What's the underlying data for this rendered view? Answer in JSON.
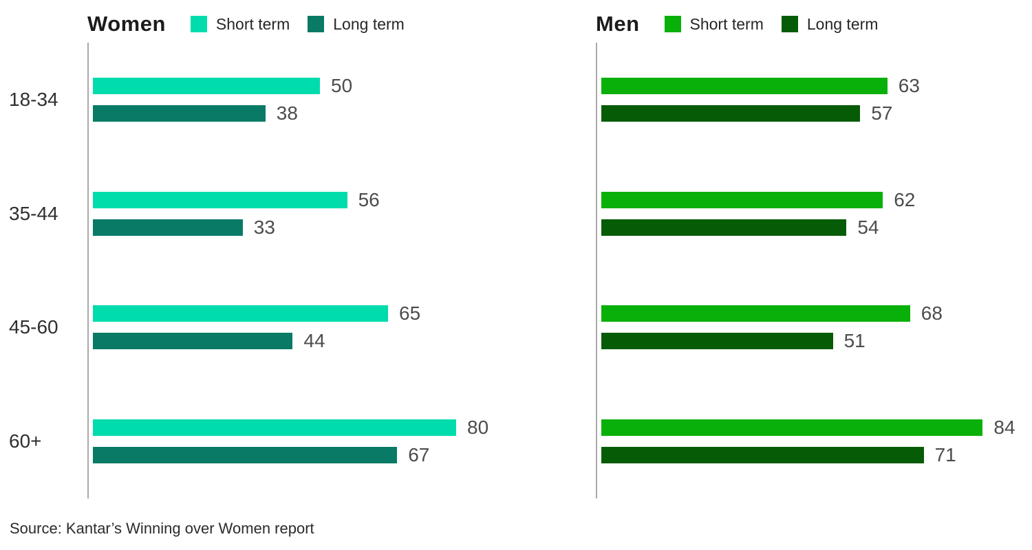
{
  "chart_data": [
    {
      "type": "bar",
      "orientation": "horizontal",
      "title": "Women",
      "categories": [
        "18-34",
        "35-44",
        "45-60",
        "60+"
      ],
      "series": [
        {
          "name": "Short term",
          "color": "#00DCAC",
          "values": [
            50,
            56,
            65,
            80
          ]
        },
        {
          "name": "Long term",
          "color": "#087A66",
          "values": [
            38,
            33,
            44,
            67
          ]
        }
      ],
      "xlim": [
        0,
        100
      ],
      "value_labels": true,
      "legend_position": "top",
      "grid": false
    },
    {
      "type": "bar",
      "orientation": "horizontal",
      "title": "Men",
      "categories": [
        "18-34",
        "35-44",
        "45-60",
        "60+"
      ],
      "series": [
        {
          "name": "Short term",
          "color": "#0AB00A",
          "values": [
            63,
            62,
            68,
            84
          ]
        },
        {
          "name": "Long term",
          "color": "#065B06",
          "values": [
            57,
            54,
            51,
            71
          ]
        }
      ],
      "xlim": [
        0,
        100
      ],
      "value_labels": true,
      "legend_position": "top",
      "grid": false
    }
  ],
  "source": "Source: Kantar’s Winning over Women report",
  "colors": {
    "axis_line": "#a9a9a9",
    "value_label": "#4c4c4c",
    "category_label": "#2f2f2f",
    "legend_text": "#262626"
  }
}
